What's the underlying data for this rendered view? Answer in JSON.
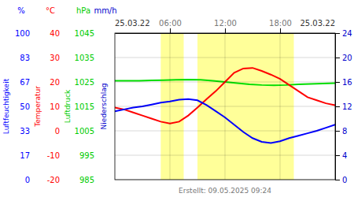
{
  "chart_data": {
    "type": "line",
    "grid": true,
    "footer": "Erstellt: 09.05.2025 09:24",
    "x_start_label": "25.03.22",
    "x_end_label": "25.03.22",
    "xlim": [
      0,
      24
    ],
    "xticks": [
      {
        "value": 6,
        "label": "06:00"
      },
      {
        "value": 12,
        "label": "12:00"
      },
      {
        "value": 18,
        "label": "18:00"
      }
    ],
    "spans": {
      "color": "#ffff99",
      "ranges": [
        [
          5.0,
          7.5
        ],
        [
          9.0,
          19.5
        ]
      ]
    },
    "axes": [
      {
        "label": "Luftfeuchtigkeit",
        "unit": "%",
        "color": "#0000ff",
        "ylim": [
          0,
          100
        ],
        "yticks": [
          0,
          {
            "value": 16.667,
            "label": "17"
          },
          {
            "value": 33.333,
            "label": "33"
          },
          50,
          {
            "value": 66.667,
            "label": "67"
          },
          {
            "value": 83.333,
            "label": "83"
          },
          100
        ]
      },
      {
        "label": "Temperatur",
        "unit": "°C",
        "color": "#ff0000",
        "ylim": [
          -20,
          40
        ],
        "yticks": [
          -20,
          -10,
          0,
          10,
          20,
          30,
          40
        ]
      },
      {
        "label": "Luftdruck",
        "unit": "hPa",
        "color": "#00cc00",
        "ylim": [
          985,
          1045
        ],
        "yticks": [
          985,
          995,
          1005,
          1015,
          1025,
          1035,
          1045
        ]
      },
      {
        "label": "Niederschlag",
        "unit": "mm/h",
        "color": "#0000cc",
        "ylim": [
          0,
          24
        ],
        "yticks": [
          0,
          4,
          8,
          12,
          16,
          20,
          24
        ]
      }
    ],
    "series": [
      {
        "color": "#00dd00",
        "axis": 3,
        "x": [
          0,
          1.33,
          2.67,
          4,
          5.33,
          6.67,
          8,
          9.33,
          10.67,
          12,
          13.33,
          14.67,
          16,
          17.33,
          18.67,
          20,
          22,
          24
        ],
        "values": [
          16.2,
          16.2,
          16.2,
          16.25,
          16.3,
          16.35,
          16.4,
          16.35,
          16.2,
          16.0,
          15.8,
          15.6,
          15.5,
          15.45,
          15.5,
          15.6,
          15.7,
          15.8
        ]
      },
      {
        "color": "#ff0000",
        "axis": 3,
        "x": [
          0,
          1,
          2,
          3,
          4,
          5,
          6,
          7,
          8,
          9,
          10,
          11,
          12,
          13,
          14,
          15,
          16,
          17,
          18,
          19,
          20,
          21,
          22,
          23,
          24
        ],
        "values": [
          11.8,
          11.5,
          11.0,
          10.5,
          10.0,
          9.5,
          9.2,
          9.5,
          10.5,
          11.8,
          13.2,
          14.5,
          16.0,
          17.5,
          18.2,
          18.3,
          17.8,
          17.2,
          16.5,
          15.5,
          14.5,
          13.5,
          13.0,
          12.5,
          12.2
        ]
      },
      {
        "color": "#0000ff",
        "axis": 3,
        "x": [
          0,
          1,
          2,
          3,
          4,
          5,
          6,
          7,
          8,
          9,
          10,
          11,
          12,
          13,
          14,
          15,
          16,
          17,
          18,
          19,
          20,
          21,
          22,
          23,
          24
        ],
        "values": [
          11.2,
          11.5,
          11.8,
          12.0,
          12.3,
          12.6,
          12.8,
          13.1,
          13.2,
          13.0,
          12.2,
          11.2,
          10.2,
          9.0,
          7.8,
          6.8,
          6.2,
          6.0,
          6.3,
          6.8,
          7.2,
          7.6,
          8.0,
          8.5,
          9.0
        ]
      }
    ]
  }
}
